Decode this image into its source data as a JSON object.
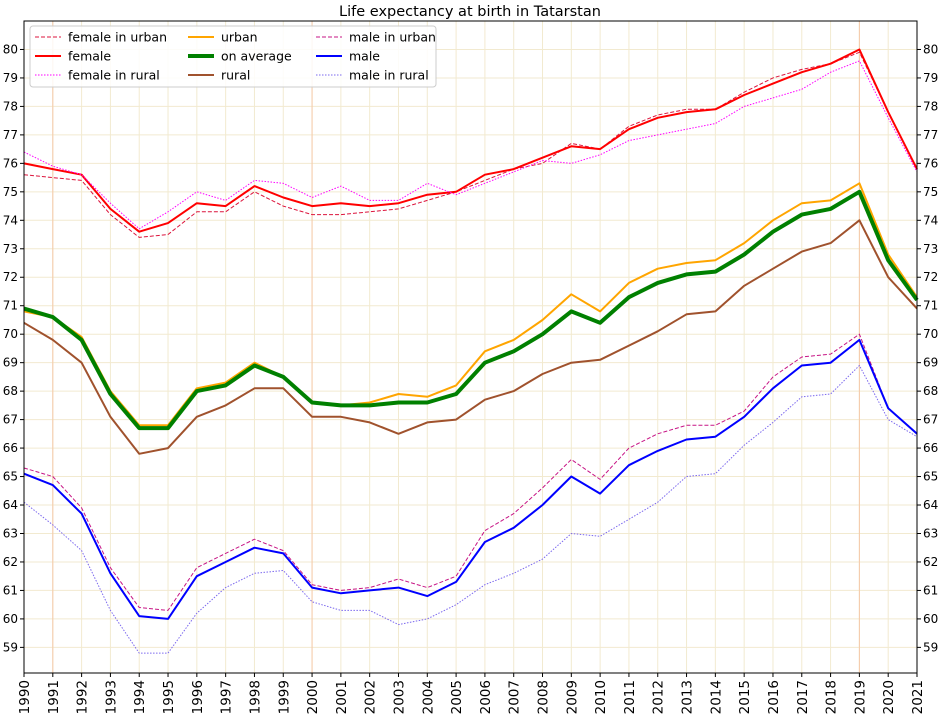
{
  "chart_data": {
    "type": "line",
    "title": "Life expectancy at birth in Tatarstan",
    "xlabel": "",
    "ylabel": "",
    "x": [
      1990,
      1991,
      1992,
      1993,
      1994,
      1995,
      1996,
      1997,
      1998,
      1999,
      2000,
      2001,
      2002,
      2003,
      2004,
      2005,
      2006,
      2007,
      2008,
      2009,
      2010,
      2011,
      2012,
      2013,
      2014,
      2015,
      2016,
      2017,
      2018,
      2019,
      2020,
      2021
    ],
    "xlim": [
      1990,
      2021
    ],
    "ylim": [
      58.1,
      81.0
    ],
    "yticks": [
      59,
      60,
      61,
      62,
      63,
      64,
      65,
      66,
      67,
      68,
      69,
      70,
      71,
      72,
      73,
      74,
      75,
      76,
      77,
      78,
      79,
      80
    ],
    "vertical_markers": [
      1991,
      2000,
      2019
    ],
    "legend_position": "top-left",
    "grid": true,
    "series": [
      {
        "name": "female in urban",
        "color": "#dc143c",
        "dash": "4,2",
        "width": 1,
        "values": [
          75.6,
          75.5,
          75.4,
          74.2,
          73.4,
          73.5,
          74.3,
          74.3,
          75.0,
          74.5,
          74.2,
          74.2,
          74.3,
          74.4,
          74.7,
          75.0,
          75.4,
          75.8,
          76.0,
          76.7,
          76.5,
          77.3,
          77.7,
          77.9,
          77.9,
          78.5,
          79.0,
          79.3,
          79.5,
          79.9,
          77.8,
          75.8
        ]
      },
      {
        "name": "female",
        "color": "#ff0000",
        "dash": "",
        "width": 2,
        "values": [
          76.0,
          75.8,
          75.6,
          74.4,
          73.6,
          73.9,
          74.6,
          74.5,
          75.2,
          74.8,
          74.5,
          74.6,
          74.5,
          74.6,
          74.9,
          75.0,
          75.6,
          75.8,
          76.2,
          76.6,
          76.5,
          77.2,
          77.6,
          77.8,
          77.9,
          78.4,
          78.8,
          79.2,
          79.5,
          80.0,
          77.8,
          75.8
        ]
      },
      {
        "name": "female in rural",
        "color": "#ff00ff",
        "dash": "1.5,1.5",
        "width": 1,
        "values": [
          76.4,
          75.9,
          75.6,
          74.6,
          73.7,
          74.3,
          75.0,
          74.7,
          75.4,
          75.3,
          74.8,
          75.2,
          74.7,
          74.7,
          75.3,
          74.9,
          75.3,
          75.7,
          76.1,
          76.0,
          76.3,
          76.8,
          77.0,
          77.2,
          77.4,
          78.0,
          78.3,
          78.6,
          79.2,
          79.6,
          77.6,
          75.7
        ]
      },
      {
        "name": "urban",
        "color": "#ffa500",
        "dash": "",
        "width": 2,
        "values": [
          70.8,
          70.6,
          69.9,
          68.0,
          66.8,
          66.8,
          68.1,
          68.3,
          69.0,
          68.5,
          67.6,
          67.5,
          67.6,
          67.9,
          67.8,
          68.2,
          69.4,
          69.8,
          70.5,
          71.4,
          70.8,
          71.8,
          72.3,
          72.5,
          72.6,
          73.2,
          74.0,
          74.6,
          74.7,
          75.3,
          72.8,
          71.3
        ]
      },
      {
        "name": "on average",
        "color": "#008000",
        "dash": "",
        "width": 4,
        "values": [
          70.9,
          70.6,
          69.8,
          67.9,
          66.7,
          66.7,
          68.0,
          68.2,
          68.9,
          68.5,
          67.6,
          67.5,
          67.5,
          67.6,
          67.6,
          67.9,
          69.0,
          69.4,
          70.0,
          70.8,
          70.4,
          71.3,
          71.8,
          72.1,
          72.2,
          72.8,
          73.6,
          74.2,
          74.4,
          75.0,
          72.6,
          71.2
        ]
      },
      {
        "name": "rural",
        "color": "#a0522d",
        "dash": "",
        "width": 2,
        "values": [
          70.4,
          69.8,
          69.0,
          67.1,
          65.8,
          66.0,
          67.1,
          67.5,
          68.1,
          68.1,
          67.1,
          67.1,
          66.9,
          66.5,
          66.9,
          67.0,
          67.7,
          68.0,
          68.6,
          69.0,
          69.1,
          69.6,
          70.1,
          70.7,
          70.8,
          71.7,
          72.3,
          72.9,
          73.2,
          74.0,
          72.0,
          70.9
        ]
      },
      {
        "name": "male in urban",
        "color": "#c71585",
        "dash": "4,2",
        "width": 1,
        "values": [
          65.3,
          65.0,
          63.9,
          61.8,
          60.4,
          60.3,
          61.8,
          62.3,
          62.8,
          62.4,
          61.2,
          61.0,
          61.1,
          61.4,
          61.1,
          61.5,
          63.1,
          63.7,
          64.6,
          65.6,
          64.9,
          66.0,
          66.5,
          66.8,
          66.8,
          67.3,
          68.5,
          69.2,
          69.3,
          70.0,
          67.4,
          66.5
        ]
      },
      {
        "name": "male",
        "color": "#0000ff",
        "dash": "",
        "width": 2,
        "values": [
          65.1,
          64.7,
          63.7,
          61.6,
          60.1,
          60.0,
          61.5,
          62.0,
          62.5,
          62.3,
          61.1,
          60.9,
          61.0,
          61.1,
          60.8,
          61.3,
          62.7,
          63.2,
          64.0,
          65.0,
          64.4,
          65.4,
          65.9,
          66.3,
          66.4,
          67.1,
          68.1,
          68.9,
          69.0,
          69.8,
          67.4,
          66.5
        ]
      },
      {
        "name": "male in rural",
        "color": "#7b68ee",
        "dash": "1.5,1.5",
        "width": 1,
        "values": [
          64.1,
          63.3,
          62.4,
          60.3,
          58.8,
          58.8,
          60.2,
          61.1,
          61.6,
          61.7,
          60.6,
          60.3,
          60.3,
          59.8,
          60.0,
          60.5,
          61.2,
          61.6,
          62.1,
          63.0,
          62.9,
          63.5,
          64.1,
          65.0,
          65.1,
          66.1,
          66.9,
          67.8,
          67.9,
          68.9,
          67.0,
          66.4
        ]
      }
    ]
  }
}
